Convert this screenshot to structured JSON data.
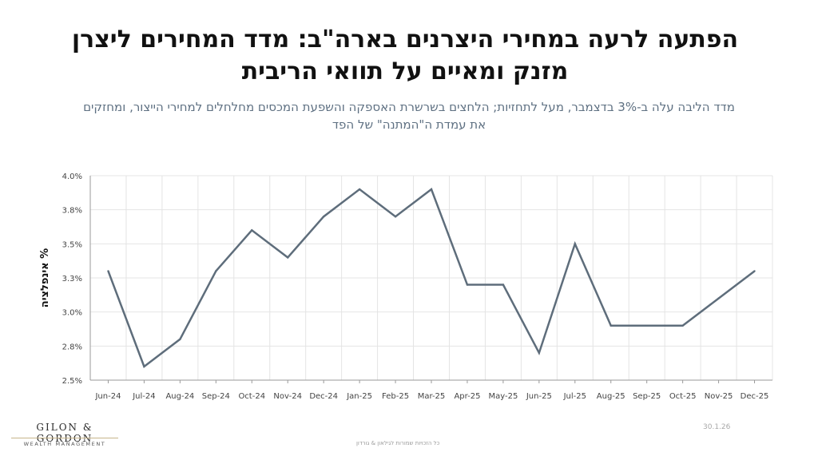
{
  "header": {
    "title_line1": "הפתעה לרעה במחירי היצרנים בארה\"ב: מדד המחירים ליצרן",
    "title_line2": "מזנק ומאיים על תוואי הריבית",
    "subtitle_line1": "מדד הליבה עלה ב-3% בדצמבר, מעל לתחזיות; הלחצים בשרשרת האספקה והשפעת המכסים מחלחלים למחירי הייצור, ומחזקים",
    "subtitle_line2": "את עמדת ה\"המתנה\" של הפד"
  },
  "chart_data": {
    "type": "line",
    "categories": [
      "Jun-24",
      "Jul-24",
      "Aug-24",
      "Sep-24",
      "Oct-24",
      "Nov-24",
      "Dec-24",
      "Jan-25",
      "Feb-25",
      "Mar-25",
      "Apr-25",
      "May-25",
      "Jun-25",
      "Jul-25",
      "Aug-25",
      "Sep-25",
      "Oct-25",
      "Nov-25",
      "Dec-25"
    ],
    "series": [
      {
        "values": [
          3.3,
          2.6,
          2.8,
          3.3,
          3.6,
          3.4,
          3.7,
          3.9,
          3.7,
          3.9,
          3.2,
          3.2,
          2.7,
          3.5,
          2.9,
          2.9,
          2.9,
          3.1,
          3.3
        ]
      }
    ],
    "ylim": [
      2.5,
      4.0
    ],
    "yticks": [
      "2.5%",
      "2.8%",
      "3.0%",
      "3.3%",
      "3.5%",
      "3.8%",
      "4.0%"
    ],
    "ylabel": "% אינפלציה",
    "xlabel": "",
    "grid": true,
    "line_color": "#5e6d7b"
  },
  "footer": {
    "date": "30.1.26",
    "rights": "כל הזכויות שמורות לגילאון & גורדון",
    "logo_main": "GILON & GORDON",
    "logo_sub": "WEALTH MANAGEMENT"
  }
}
